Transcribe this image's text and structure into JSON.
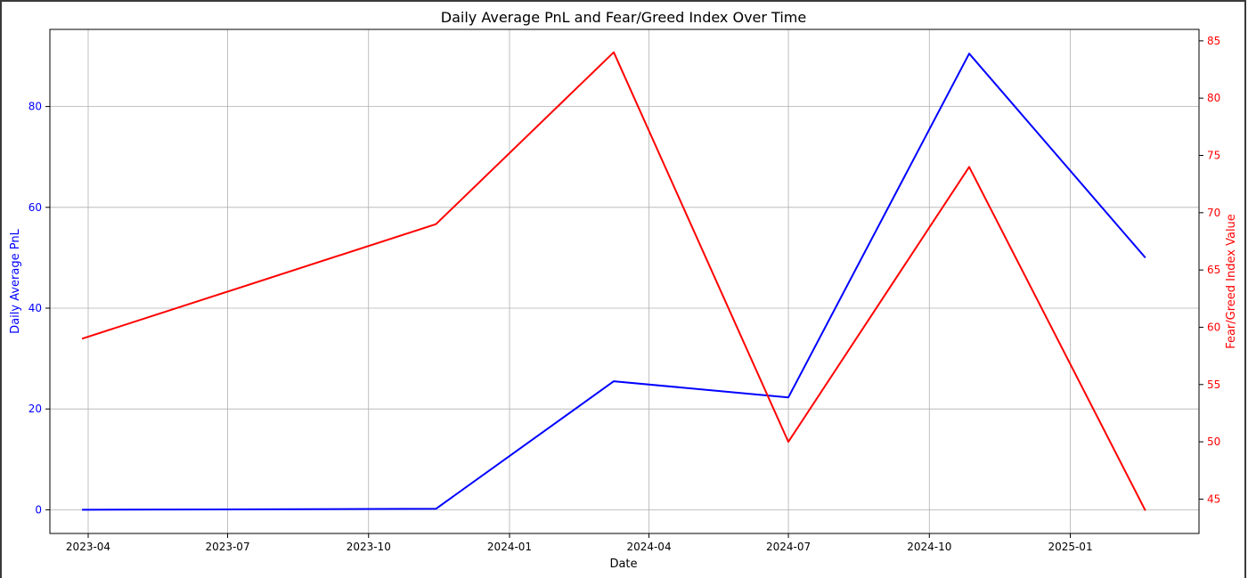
{
  "chart_data": {
    "type": "line",
    "title": "Daily Average PnL and Fear/Greed Index Over Time",
    "xlabel": "Date",
    "ylabel_left": "Daily Average PnL",
    "ylabel_right": "Fear/Greed Index Value",
    "x_ticks": [
      "2023-04",
      "2023-07",
      "2023-10",
      "2024-01",
      "2024-04",
      "2024-07",
      "2024-10",
      "2025-01"
    ],
    "y_left_ticks": [
      0,
      20,
      40,
      60,
      80
    ],
    "y_right_ticks": [
      45,
      50,
      55,
      60,
      65,
      70,
      75,
      80,
      85
    ],
    "y_left_lim": [
      -4.7,
      95.3
    ],
    "y_right_lim": [
      42,
      86
    ],
    "x_range": [
      "2023-03-07",
      "2025-03-26"
    ],
    "grid": true,
    "x": [
      "2023-03-28",
      "2023-11-14",
      "2024-03-09",
      "2024-07-01",
      "2024-10-27",
      "2025-02-19"
    ],
    "series": [
      {
        "axis": "left",
        "color": "#0000ff",
        "values": [
          0,
          0.2,
          25.5,
          22.3,
          90.5,
          50
        ]
      },
      {
        "axis": "right",
        "color": "#ff0000",
        "values": [
          59,
          69,
          84,
          50,
          74,
          44
        ]
      }
    ],
    "colors": {
      "left_axis": "#0000ff",
      "right_axis": "#ff0000"
    }
  }
}
